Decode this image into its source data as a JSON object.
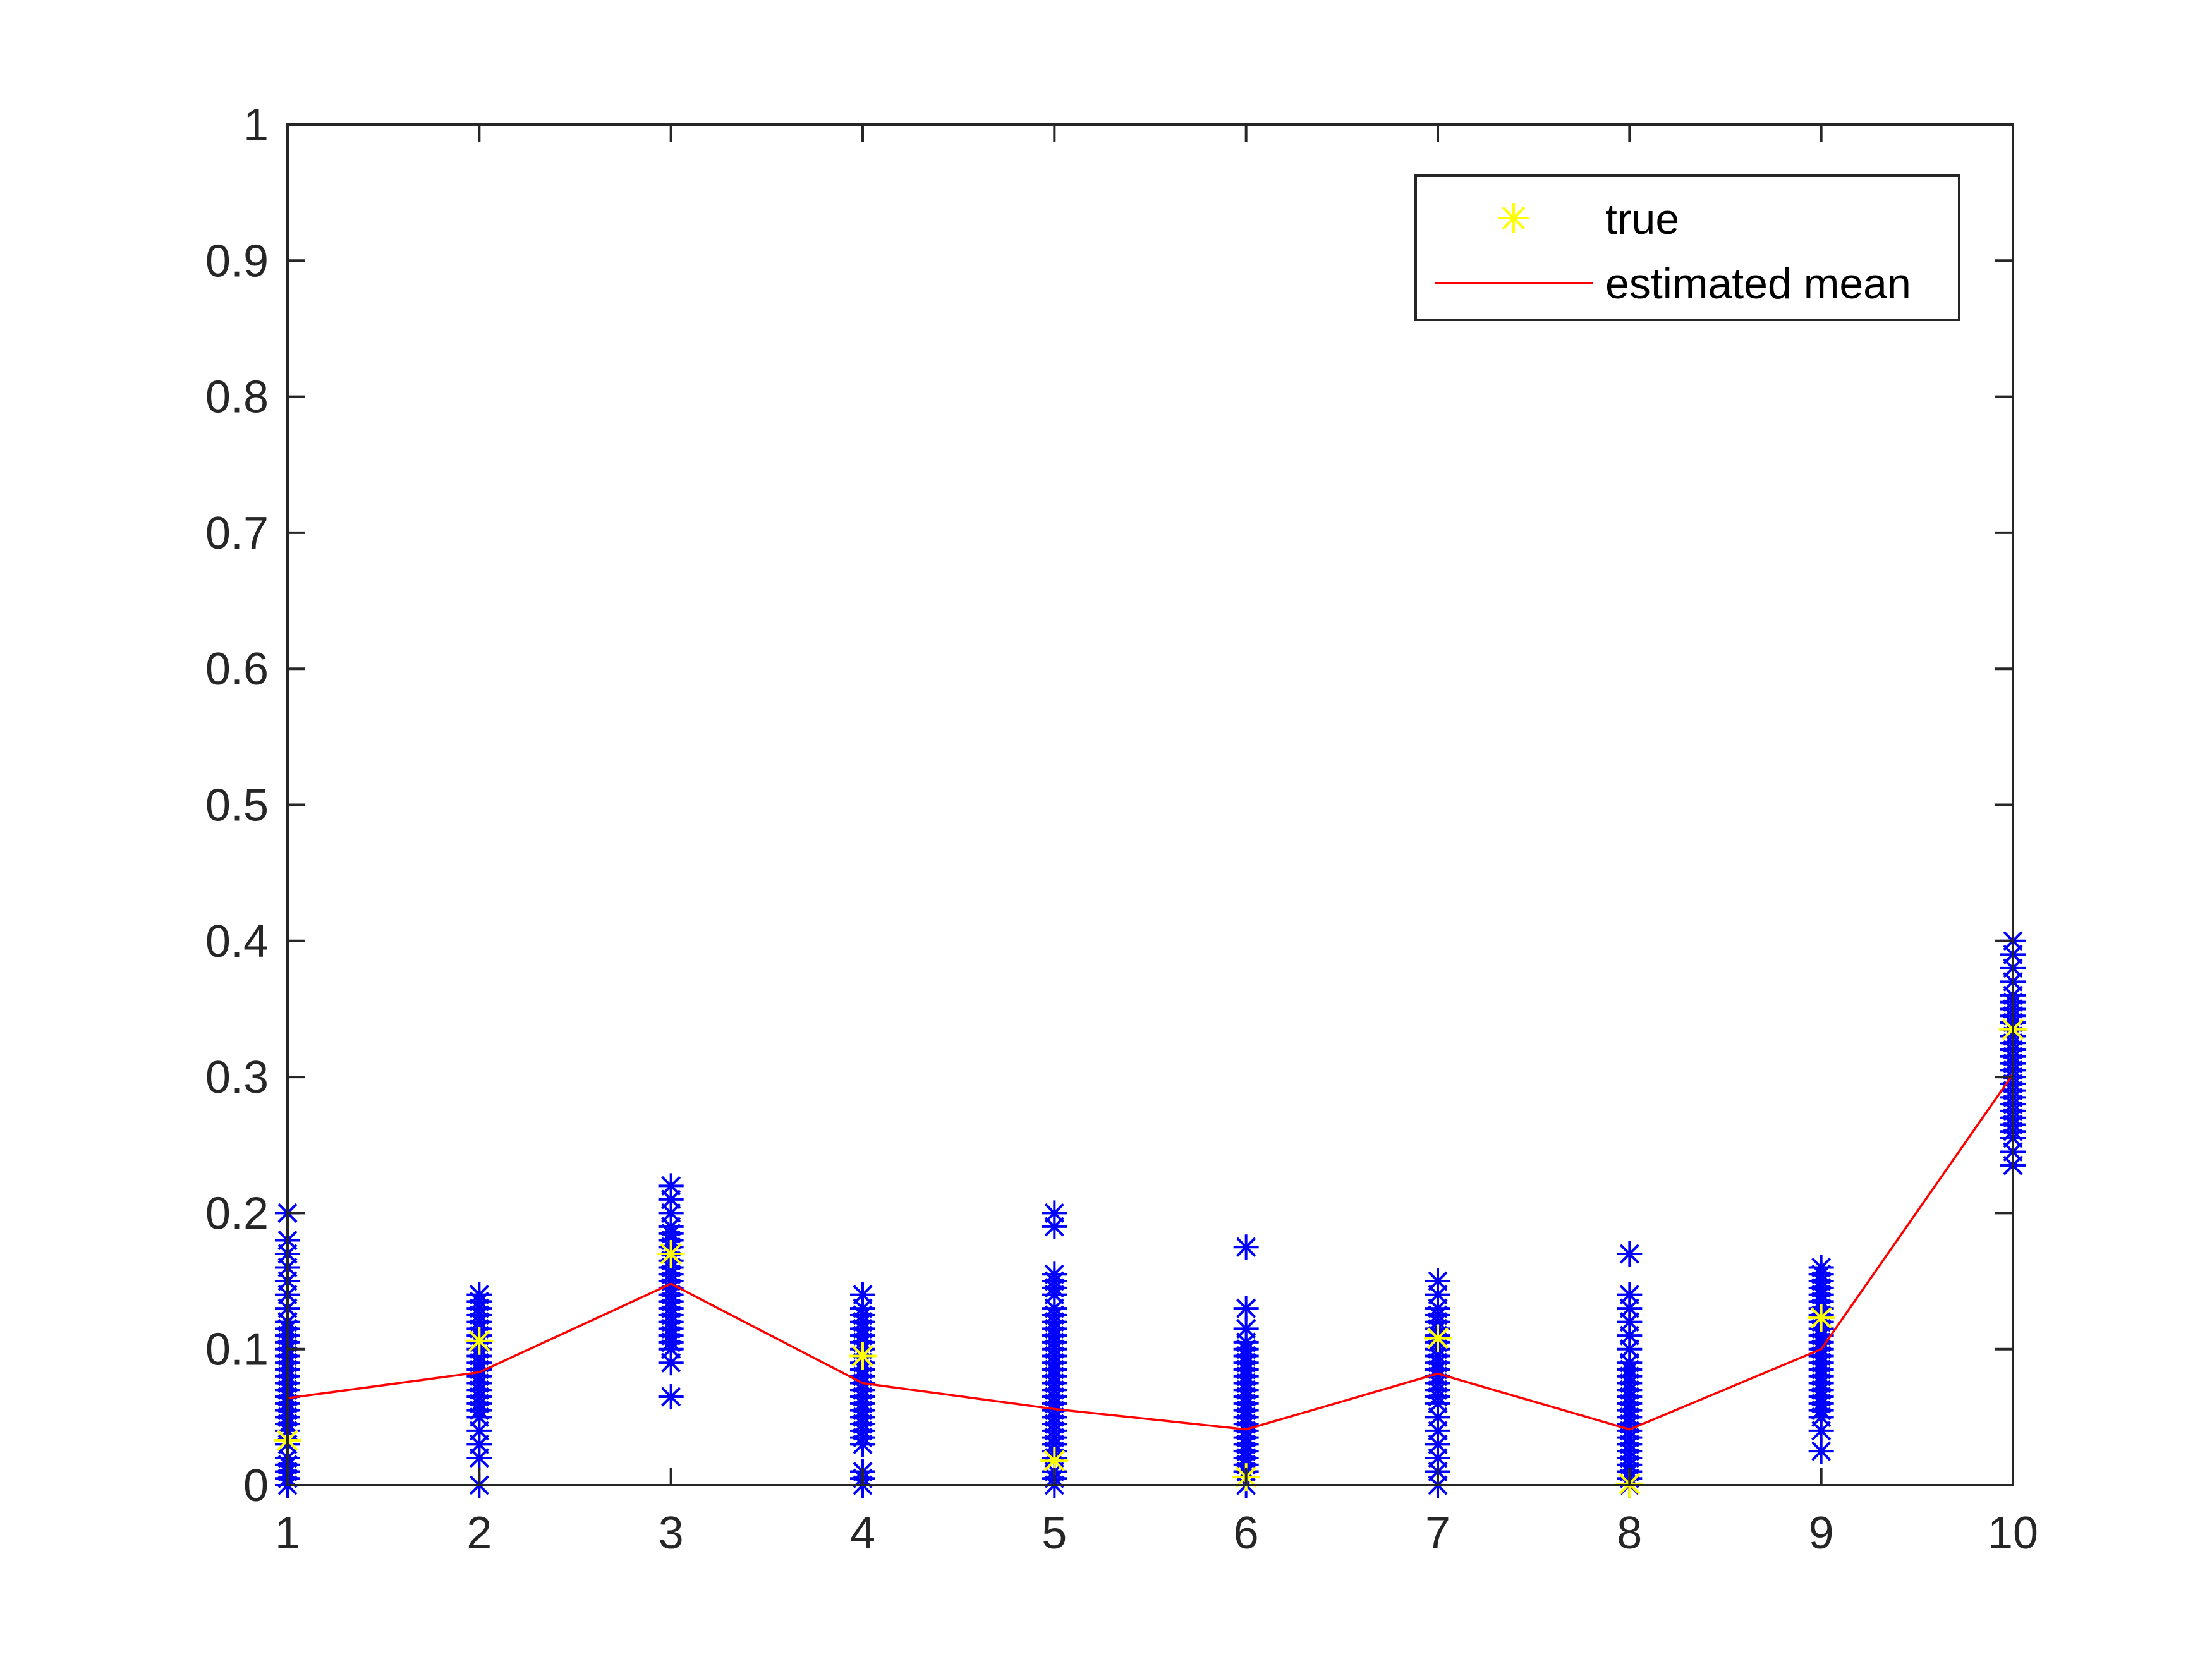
{
  "chart_data": {
    "type": "scatter",
    "title": "",
    "xlabel": "",
    "ylabel": "",
    "xlim": [
      1,
      10
    ],
    "ylim": [
      0,
      1
    ],
    "x_ticks": [
      "1",
      "2",
      "3",
      "4",
      "5",
      "6",
      "7",
      "8",
      "9",
      "10"
    ],
    "y_ticks": [
      "0",
      "0.1",
      "0.2",
      "0.3",
      "0.4",
      "0.5",
      "0.6",
      "0.7",
      "0.8",
      "0.9",
      "1"
    ],
    "grid": false,
    "legend_position": "top-right",
    "legend": [
      {
        "label": "true",
        "marker": "asterisk",
        "color": "#ffff00"
      },
      {
        "label": "estimated mean",
        "marker": "line",
        "color": "#ff0000"
      }
    ],
    "samples": {
      "color": "#0000ff",
      "marker": "asterisk",
      "groups": [
        {
          "x": 1,
          "values": [
            0.0,
            0.005,
            0.01,
            0.015,
            0.02,
            0.03,
            0.04,
            0.045,
            0.05,
            0.055,
            0.06,
            0.065,
            0.07,
            0.075,
            0.08,
            0.085,
            0.09,
            0.095,
            0.1,
            0.105,
            0.11,
            0.115,
            0.12,
            0.13,
            0.14,
            0.15,
            0.16,
            0.17,
            0.18,
            0.2
          ]
        },
        {
          "x": 2,
          "values": [
            0.0,
            0.02,
            0.03,
            0.04,
            0.05,
            0.055,
            0.06,
            0.065,
            0.07,
            0.075,
            0.08,
            0.085,
            0.09,
            0.095,
            0.1,
            0.105,
            0.11,
            0.115,
            0.12,
            0.125,
            0.13,
            0.135,
            0.14
          ]
        },
        {
          "x": 3,
          "values": [
            0.065,
            0.09,
            0.1,
            0.105,
            0.11,
            0.115,
            0.12,
            0.125,
            0.13,
            0.135,
            0.14,
            0.145,
            0.15,
            0.155,
            0.16,
            0.165,
            0.17,
            0.175,
            0.18,
            0.185,
            0.19,
            0.2,
            0.21,
            0.22
          ]
        },
        {
          "x": 4,
          "values": [
            0.0,
            0.005,
            0.01,
            0.03,
            0.035,
            0.04,
            0.045,
            0.05,
            0.055,
            0.06,
            0.065,
            0.07,
            0.075,
            0.08,
            0.085,
            0.09,
            0.095,
            0.1,
            0.105,
            0.11,
            0.115,
            0.12,
            0.125,
            0.13,
            0.14
          ]
        },
        {
          "x": 5,
          "values": [
            0.0,
            0.005,
            0.01,
            0.02,
            0.025,
            0.03,
            0.035,
            0.04,
            0.045,
            0.05,
            0.055,
            0.06,
            0.065,
            0.07,
            0.075,
            0.08,
            0.085,
            0.09,
            0.095,
            0.1,
            0.105,
            0.11,
            0.115,
            0.12,
            0.125,
            0.13,
            0.14,
            0.145,
            0.15,
            0.155,
            0.19,
            0.2
          ]
        },
        {
          "x": 6,
          "values": [
            0.0,
            0.01,
            0.015,
            0.02,
            0.025,
            0.03,
            0.035,
            0.04,
            0.045,
            0.05,
            0.055,
            0.06,
            0.065,
            0.07,
            0.075,
            0.08,
            0.085,
            0.09,
            0.095,
            0.1,
            0.105,
            0.115,
            0.13,
            0.175
          ]
        },
        {
          "x": 7,
          "values": [
            0.0,
            0.01,
            0.02,
            0.03,
            0.04,
            0.05,
            0.06,
            0.065,
            0.07,
            0.075,
            0.08,
            0.085,
            0.09,
            0.095,
            0.1,
            0.105,
            0.11,
            0.115,
            0.12,
            0.125,
            0.13,
            0.14,
            0.15
          ]
        },
        {
          "x": 8,
          "values": [
            0.0,
            0.005,
            0.01,
            0.015,
            0.02,
            0.025,
            0.03,
            0.035,
            0.04,
            0.045,
            0.05,
            0.055,
            0.06,
            0.065,
            0.07,
            0.075,
            0.08,
            0.085,
            0.09,
            0.1,
            0.11,
            0.12,
            0.13,
            0.14,
            0.17
          ]
        },
        {
          "x": 9,
          "values": [
            0.025,
            0.04,
            0.05,
            0.055,
            0.06,
            0.065,
            0.07,
            0.075,
            0.08,
            0.085,
            0.09,
            0.095,
            0.1,
            0.105,
            0.11,
            0.115,
            0.12,
            0.125,
            0.13,
            0.135,
            0.14,
            0.145,
            0.15,
            0.155,
            0.16
          ]
        },
        {
          "x": 10,
          "values": [
            0.235,
            0.245,
            0.255,
            0.26,
            0.265,
            0.27,
            0.275,
            0.28,
            0.285,
            0.29,
            0.295,
            0.3,
            0.305,
            0.31,
            0.315,
            0.32,
            0.325,
            0.33,
            0.335,
            0.34,
            0.345,
            0.35,
            0.355,
            0.36,
            0.37,
            0.38,
            0.39,
            0.4
          ]
        }
      ]
    },
    "series": [
      {
        "name": "true",
        "type": "scatter",
        "x": [
          1,
          2,
          3,
          4,
          5,
          6,
          7,
          8,
          9,
          10
        ],
        "values": [
          0.033,
          0.106,
          0.17,
          0.095,
          0.018,
          0.006,
          0.108,
          0.001,
          0.123,
          0.335
        ]
      },
      {
        "name": "estimated mean",
        "type": "line",
        "x": [
          1,
          2,
          3,
          4,
          5,
          6,
          7,
          8,
          9,
          10
        ],
        "values": [
          0.064,
          0.083,
          0.148,
          0.075,
          0.056,
          0.041,
          0.082,
          0.041,
          0.1,
          0.302
        ]
      }
    ]
  }
}
